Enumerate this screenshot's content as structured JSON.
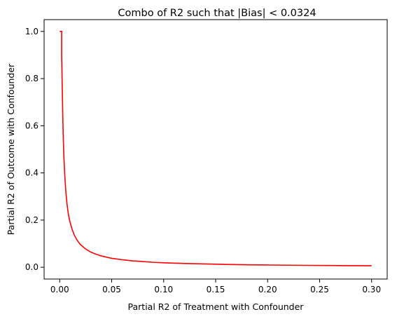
{
  "chart_data": {
    "type": "line",
    "title": "Combo of R2 such that |Bias| < 0.0324",
    "xlabel": "Partial R2 of Treatment with Confounder",
    "ylabel": "Partial R2 of Outcome with Confounder",
    "xlim": [
      -0.015,
      0.315
    ],
    "ylim": [
      -0.05,
      1.05
    ],
    "grid": false,
    "xticks": [
      0.0,
      0.05,
      0.1,
      0.15,
      0.2,
      0.25,
      0.3
    ],
    "xtick_labels": [
      "0.00",
      "0.05",
      "0.10",
      "0.15",
      "0.20",
      "0.25",
      "0.30"
    ],
    "yticks": [
      0.0,
      0.2,
      0.4,
      0.6,
      0.8,
      1.0
    ],
    "ytick_labels": [
      "0.0",
      "0.2",
      "0.4",
      "0.6",
      "0.8",
      "1.0"
    ],
    "series": [
      {
        "color": "#ff0000",
        "x": [
          0.0,
          0.0019,
          0.0019,
          0.0025,
          0.003,
          0.0035,
          0.004,
          0.005,
          0.006,
          0.007,
          0.008,
          0.009,
          0.01,
          0.012,
          0.014,
          0.016,
          0.018,
          0.02,
          0.025,
          0.03,
          0.035,
          0.04,
          0.05,
          0.06,
          0.07,
          0.08,
          0.09,
          0.1,
          0.12,
          0.14,
          0.16,
          0.18,
          0.2,
          0.22,
          0.24,
          0.26,
          0.28,
          0.3
        ],
        "y": [
          1.0,
          1.0,
          0.9,
          0.75,
          0.63,
          0.54,
          0.47,
          0.38,
          0.315,
          0.27,
          0.235,
          0.21,
          0.19,
          0.16,
          0.137,
          0.12,
          0.107,
          0.096,
          0.077,
          0.064,
          0.055,
          0.048,
          0.038,
          0.032,
          0.027,
          0.024,
          0.021,
          0.019,
          0.016,
          0.014,
          0.012,
          0.0105,
          0.0095,
          0.0087,
          0.008,
          0.0074,
          0.0068,
          0.0064
        ]
      }
    ]
  }
}
